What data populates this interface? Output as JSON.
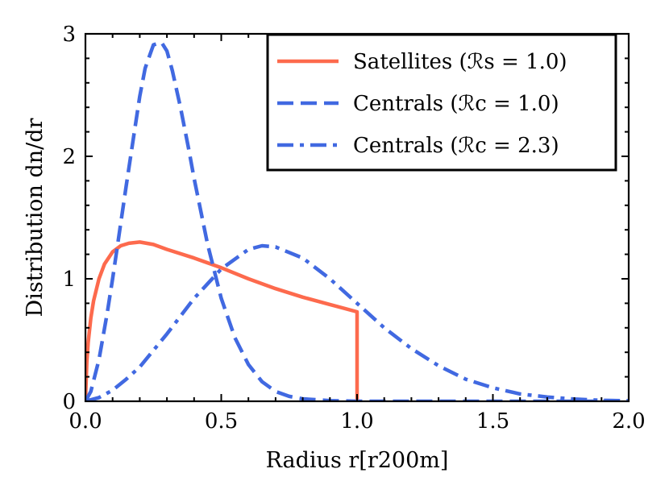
{
  "chart_data": {
    "type": "line",
    "title": "",
    "xlabel": "Radius r[r200m]",
    "ylabel": "Distribution dn/dr",
    "xlim": [
      0,
      2
    ],
    "ylim": [
      0,
      3
    ],
    "x_ticks": [
      0,
      0.5,
      1,
      1.5,
      2
    ],
    "x_tick_labels": [
      "0.0",
      "0.5",
      "1.0",
      "1.5",
      "2.0"
    ],
    "y_ticks": [
      0,
      1,
      2,
      3
    ],
    "y_tick_labels": [
      "0",
      "1",
      "2",
      "3"
    ],
    "grid": false,
    "legend_position": "top-right",
    "series": [
      {
        "name": "Satellites (ℛs = 1.0)",
        "color": "#fd6a4d",
        "style": "solid",
        "x": [
          0.0,
          0.005,
          0.01,
          0.02,
          0.03,
          0.05,
          0.07,
          0.1,
          0.13,
          0.16,
          0.2,
          0.25,
          0.3,
          0.4,
          0.5,
          0.6,
          0.7,
          0.8,
          0.9,
          1.0,
          1.0
        ],
        "y": [
          0.0,
          0.32,
          0.48,
          0.68,
          0.82,
          1.0,
          1.12,
          1.22,
          1.27,
          1.29,
          1.3,
          1.28,
          1.24,
          1.17,
          1.09,
          1.0,
          0.92,
          0.85,
          0.79,
          0.73,
          0.0
        ]
      },
      {
        "name": "Centrals (ℛc = 1.0)",
        "color": "#4169e1",
        "style": "dashed",
        "x": [
          0.0,
          0.02,
          0.05,
          0.08,
          0.1,
          0.12,
          0.15,
          0.18,
          0.2,
          0.22,
          0.25,
          0.28,
          0.3,
          0.32,
          0.35,
          0.38,
          0.4,
          0.45,
          0.5,
          0.55,
          0.6,
          0.65,
          0.7,
          0.75,
          0.8,
          0.9,
          1.0,
          1.2,
          1.5,
          2.0
        ],
        "y": [
          0.0,
          0.08,
          0.34,
          0.72,
          1.0,
          1.3,
          1.76,
          2.2,
          2.49,
          2.72,
          2.91,
          2.93,
          2.86,
          2.7,
          2.4,
          2.06,
          1.82,
          1.28,
          0.84,
          0.52,
          0.3,
          0.16,
          0.08,
          0.04,
          0.02,
          0.005,
          0.0,
          0.0,
          0.0,
          0.0
        ]
      },
      {
        "name": "Centrals (ℛc = 2.3)",
        "color": "#4169e1",
        "style": "dashdot",
        "x": [
          0.0,
          0.05,
          0.1,
          0.15,
          0.2,
          0.3,
          0.4,
          0.5,
          0.6,
          0.65,
          0.7,
          0.8,
          0.9,
          1.0,
          1.1,
          1.2,
          1.3,
          1.4,
          1.5,
          1.6,
          1.7,
          1.8,
          1.9,
          2.0
        ],
        "y": [
          0.0,
          0.03,
          0.09,
          0.18,
          0.28,
          0.55,
          0.84,
          1.08,
          1.24,
          1.27,
          1.26,
          1.17,
          1.0,
          0.8,
          0.6,
          0.43,
          0.29,
          0.18,
          0.11,
          0.06,
          0.035,
          0.018,
          0.008,
          0.004
        ]
      }
    ]
  }
}
